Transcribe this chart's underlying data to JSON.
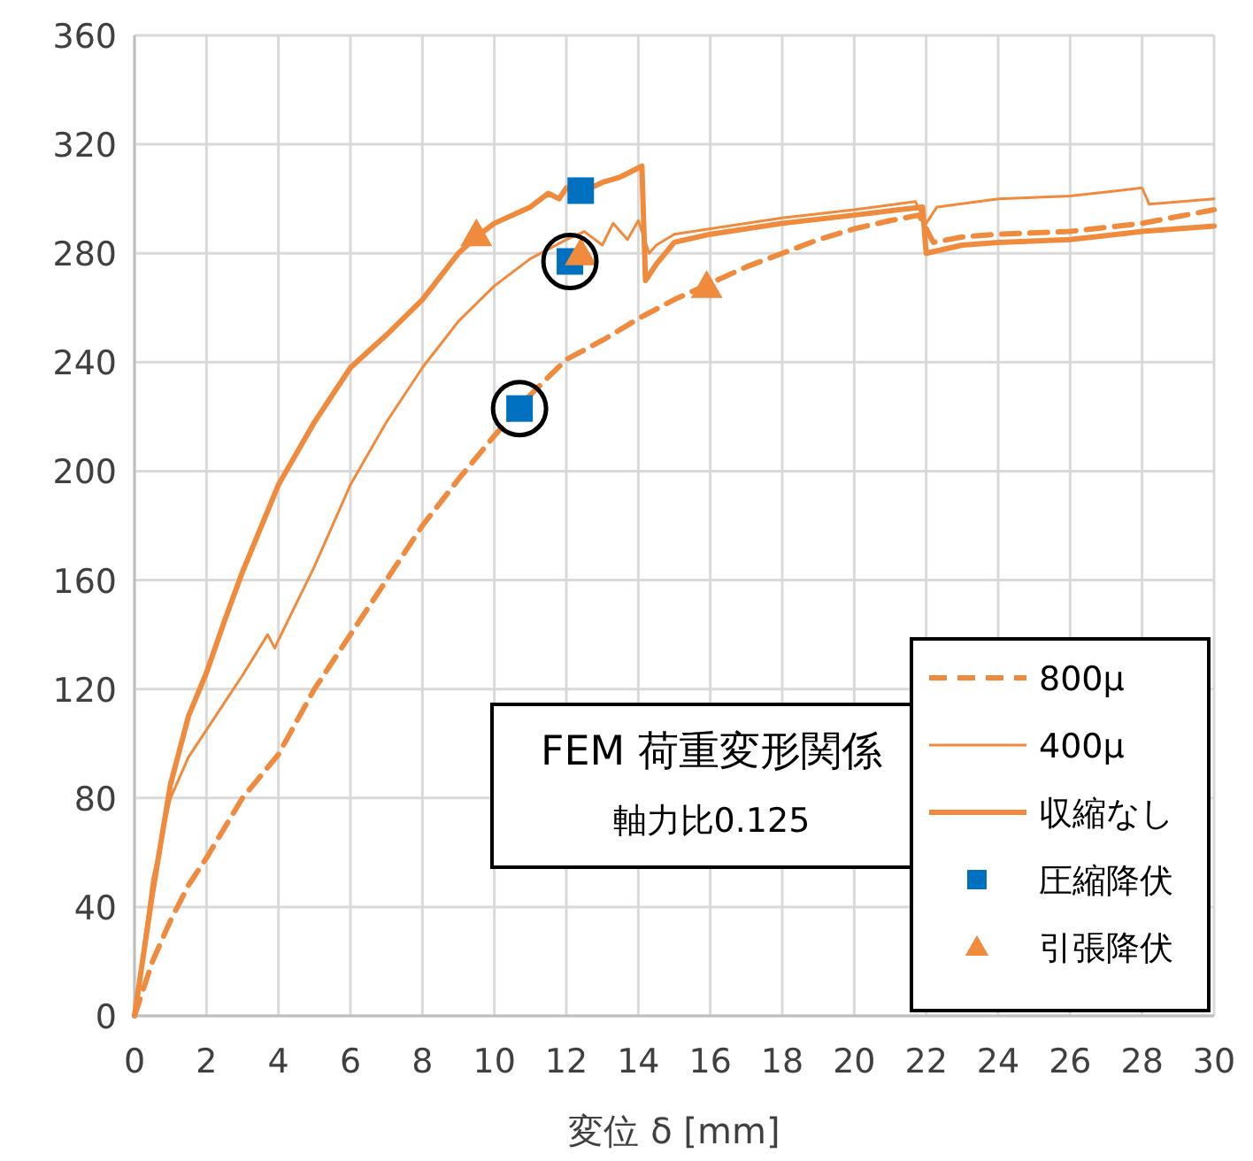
{
  "chart_data": {
    "type": "line",
    "xlabel": "変位 δ [mm]",
    "xlim": [
      0,
      30
    ],
    "xticks": [
      0,
      2,
      4,
      6,
      8,
      10,
      12,
      14,
      16,
      18,
      20,
      22,
      24,
      26,
      28,
      30
    ],
    "ylim": [
      0,
      360
    ],
    "yticks": [
      0,
      40,
      80,
      120,
      160,
      200,
      240,
      280,
      320,
      360
    ],
    "grid": true,
    "legend": "bottom right",
    "annotations": [
      "FEM 荷重変形関係",
      "軸力比0.125"
    ],
    "series": [
      {
        "name": "800μ",
        "color": "#f08a3c",
        "line_style": "dashed",
        "marker": "none",
        "x": [
          0,
          0.5,
          1,
          1.5,
          2,
          3,
          4,
          5,
          6,
          7,
          8,
          9,
          10,
          11,
          12,
          13,
          14,
          15,
          16,
          17,
          18,
          19,
          20,
          21,
          21.8,
          22.2,
          23,
          24,
          26,
          28,
          30
        ],
        "values": [
          0,
          20,
          35,
          48,
          58,
          80,
          96,
          120,
          140,
          160,
          180,
          197,
          213,
          228,
          241,
          248,
          256,
          263,
          269,
          275,
          280,
          285,
          289,
          292,
          294,
          284,
          286,
          287,
          288,
          291,
          296
        ]
      },
      {
        "name": "400μ",
        "color": "#f08a3c",
        "line_style": "solid",
        "marker": "none",
        "x": [
          0,
          0.5,
          1,
          1.5,
          2,
          3,
          3.7,
          3.9,
          4,
          5,
          6,
          7,
          8,
          9,
          10,
          11,
          12,
          12.5,
          13,
          13.3,
          13.7,
          14,
          14.3,
          14.5,
          15,
          16,
          18,
          20,
          21.7,
          22,
          22.3,
          24,
          26,
          28,
          28.2,
          30
        ],
        "values": [
          0,
          50,
          80,
          95,
          105,
          125,
          140,
          135,
          138,
          165,
          195,
          218,
          238,
          255,
          268,
          278,
          285,
          288,
          283,
          291,
          285,
          292,
          280,
          283,
          287,
          289,
          293,
          296,
          299,
          291,
          297,
          300,
          301,
          304,
          298,
          300
        ]
      },
      {
        "name": "収縮なし",
        "color": "#f08a3c",
        "line_style": "solid",
        "marker": "none",
        "x": [
          0,
          0.5,
          1,
          1.5,
          2,
          2.5,
          3,
          4,
          5,
          6,
          7,
          8,
          9,
          9.5,
          10,
          11,
          11.5,
          11.8,
          12,
          12.5,
          13,
          13.5,
          14.1,
          14.2,
          14.5,
          15,
          16,
          18,
          20,
          21.9,
          22,
          23,
          24,
          26,
          28,
          30
        ],
        "values": [
          0,
          45,
          85,
          110,
          126,
          145,
          163,
          195,
          218,
          238,
          250,
          263,
          280,
          286,
          291,
          297,
          302,
          300,
          304,
          303,
          306,
          308,
          312,
          270,
          276,
          284,
          287,
          291,
          294,
          297,
          280,
          283,
          284,
          285,
          288,
          290
        ]
      },
      {
        "name": "圧縮降伏",
        "type": "scatter",
        "color": "#0070c0",
        "marker": "square",
        "x": [
          10.7,
          12.1,
          12.4
        ],
        "values": [
          223,
          277,
          303
        ]
      },
      {
        "name": "引張降伏",
        "type": "scatter",
        "color": "#f08a3c",
        "marker": "triangle",
        "x": [
          9.5,
          12.4,
          15.9
        ],
        "values": [
          287,
          280,
          268
        ]
      }
    ]
  }
}
